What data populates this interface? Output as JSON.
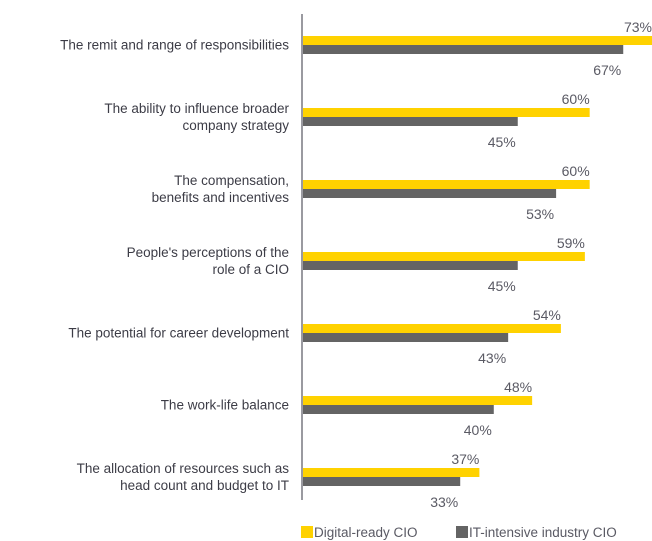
{
  "chart_data": {
    "type": "bar",
    "orientation": "horizontal",
    "categories": [
      "The remit and range of responsibilities",
      "The ability to influence broader company strategy",
      "The compensation, benefits and incentives",
      "People's perceptions of the role of a CIO",
      "The potential for career development",
      "The work-life balance",
      "The allocation of resources such as head count and budget to IT"
    ],
    "category_lines": [
      [
        "The remit and range of responsibilities"
      ],
      [
        "The ability to influence broader",
        "company strategy"
      ],
      [
        "The compensation,",
        "benefits and incentives"
      ],
      [
        "People's perceptions of the",
        "role of a CIO"
      ],
      [
        "The potential for career development"
      ],
      [
        "The work-life balance"
      ],
      [
        "The allocation of resources such as",
        "head count and budget to IT"
      ]
    ],
    "series": [
      {
        "name": "Digital-ready CIO",
        "values": [
          73,
          60,
          60,
          59,
          54,
          48,
          37
        ],
        "labels": [
          "73%",
          "60%",
          "60%",
          "59%",
          "54%",
          "48%",
          "37%"
        ],
        "color": "#ffd200"
      },
      {
        "name": "IT-intensive industry CIO",
        "values": [
          67,
          45,
          53,
          45,
          43,
          40,
          33
        ],
        "labels": [
          "67%",
          "45%",
          "53%",
          "45%",
          "43%",
          "40%",
          "33%"
        ],
        "color": "#646464"
      }
    ],
    "unit": "%",
    "xlim": [
      0,
      73
    ],
    "grid": false,
    "legend_position": "bottom-right"
  }
}
